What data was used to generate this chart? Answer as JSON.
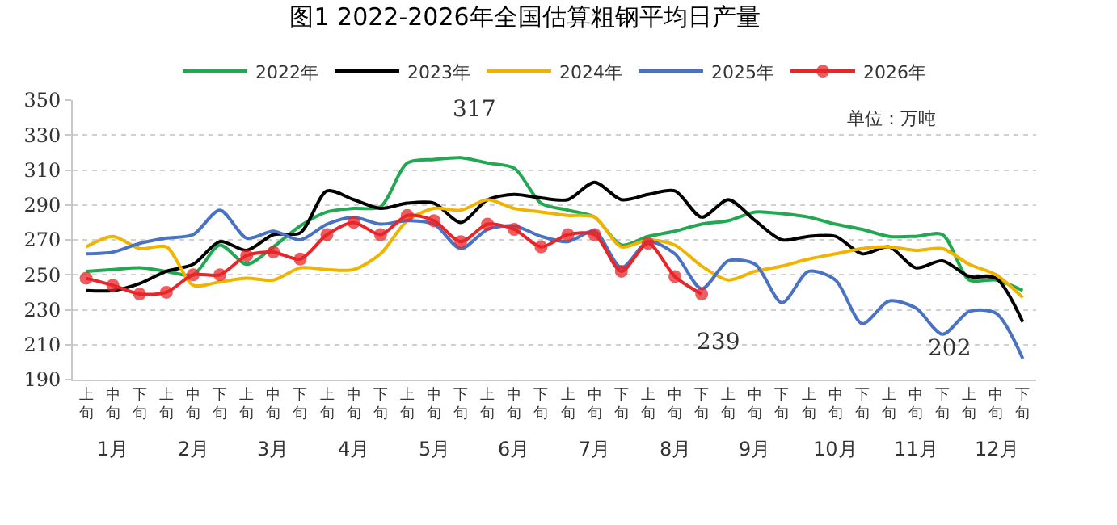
{
  "chart_data": {
    "type": "line",
    "title": "图1 2022-2026年全国估算粗钢平均日产量",
    "ylabel": "单位：万吨",
    "categories": [
      "上旬",
      "中旬",
      "下旬",
      "上旬",
      "中旬",
      "下旬",
      "上旬",
      "中旬",
      "下旬",
      "上旬",
      "中旬",
      "下旬",
      "上旬",
      "中旬",
      "下旬",
      "上旬",
      "中旬",
      "下旬",
      "上旬",
      "中旬",
      "下旬",
      "上旬",
      "中旬",
      "下旬",
      "上旬",
      "中旬",
      "下旬",
      "上旬",
      "中旬",
      "下旬",
      "上旬",
      "中旬",
      "下旬",
      "上旬",
      "中旬",
      "下旬"
    ],
    "series": [
      {
        "name": "2022年",
        "color": "#22a852",
        "marker": "none",
        "values": [
          252,
          253,
          254,
          252,
          250,
          267,
          256,
          266,
          278,
          286,
          288,
          289,
          314,
          316,
          317,
          314,
          311,
          291,
          287,
          283,
          267,
          272,
          275,
          279,
          281,
          286,
          285,
          283,
          279,
          276,
          272,
          272,
          273,
          247,
          247,
          241
        ]
      },
      {
        "name": "2023年",
        "color": "#000000",
        "marker": "none",
        "values": [
          241,
          241,
          245,
          252,
          256,
          269,
          264,
          273,
          274,
          298,
          293,
          288,
          291,
          291,
          280,
          293,
          296,
          294,
          293,
          303,
          293,
          296,
          298,
          283,
          293,
          281,
          270,
          272,
          272,
          262,
          266,
          254,
          258,
          249,
          248,
          223
        ]
      },
      {
        "name": "2024年",
        "color": "#f0b400",
        "marker": "none",
        "values": [
          266,
          272,
          265,
          266,
          244,
          246,
          248,
          247,
          254,
          253,
          253,
          262,
          281,
          288,
          287,
          293,
          288,
          286,
          284,
          283,
          266,
          270,
          267,
          255,
          247,
          252,
          255,
          259,
          262,
          265,
          266,
          264,
          265,
          256,
          250,
          237
        ]
      },
      {
        "name": "2025年",
        "color": "#4a72c4",
        "marker": "none",
        "values": [
          262,
          263,
          268,
          271,
          273,
          287,
          271,
          275,
          270,
          279,
          283,
          279,
          281,
          279,
          265,
          276,
          278,
          272,
          269,
          275,
          254,
          269,
          262,
          242,
          258,
          256,
          234,
          252,
          247,
          222,
          235,
          231,
          216,
          229,
          228,
          202
        ]
      },
      {
        "name": "2026年",
        "color": "#e8262a",
        "marker": "circle",
        "values": [
          248,
          244,
          239,
          240,
          250,
          250,
          261,
          263,
          259,
          273,
          280,
          273,
          284,
          281,
          269,
          279,
          276,
          266,
          273,
          273,
          252,
          268,
          249,
          239,
          null,
          null,
          null,
          null,
          null,
          null,
          null,
          null,
          null,
          null,
          null,
          null
        ]
      }
    ],
    "annotations": [
      "1月",
      "2月",
      "3月",
      "4月",
      "5月",
      "6月",
      "7月",
      "8月",
      "9月",
      "10月",
      "11月",
      "12月",
      "317",
      "239",
      "202"
    ],
    "ylim": [
      190,
      350
    ],
    "yticks": [
      190,
      210,
      230,
      250,
      270,
      290,
      310,
      330,
      350
    ],
    "grid": "y",
    "legend": "top",
    "line_style": "solid"
  }
}
